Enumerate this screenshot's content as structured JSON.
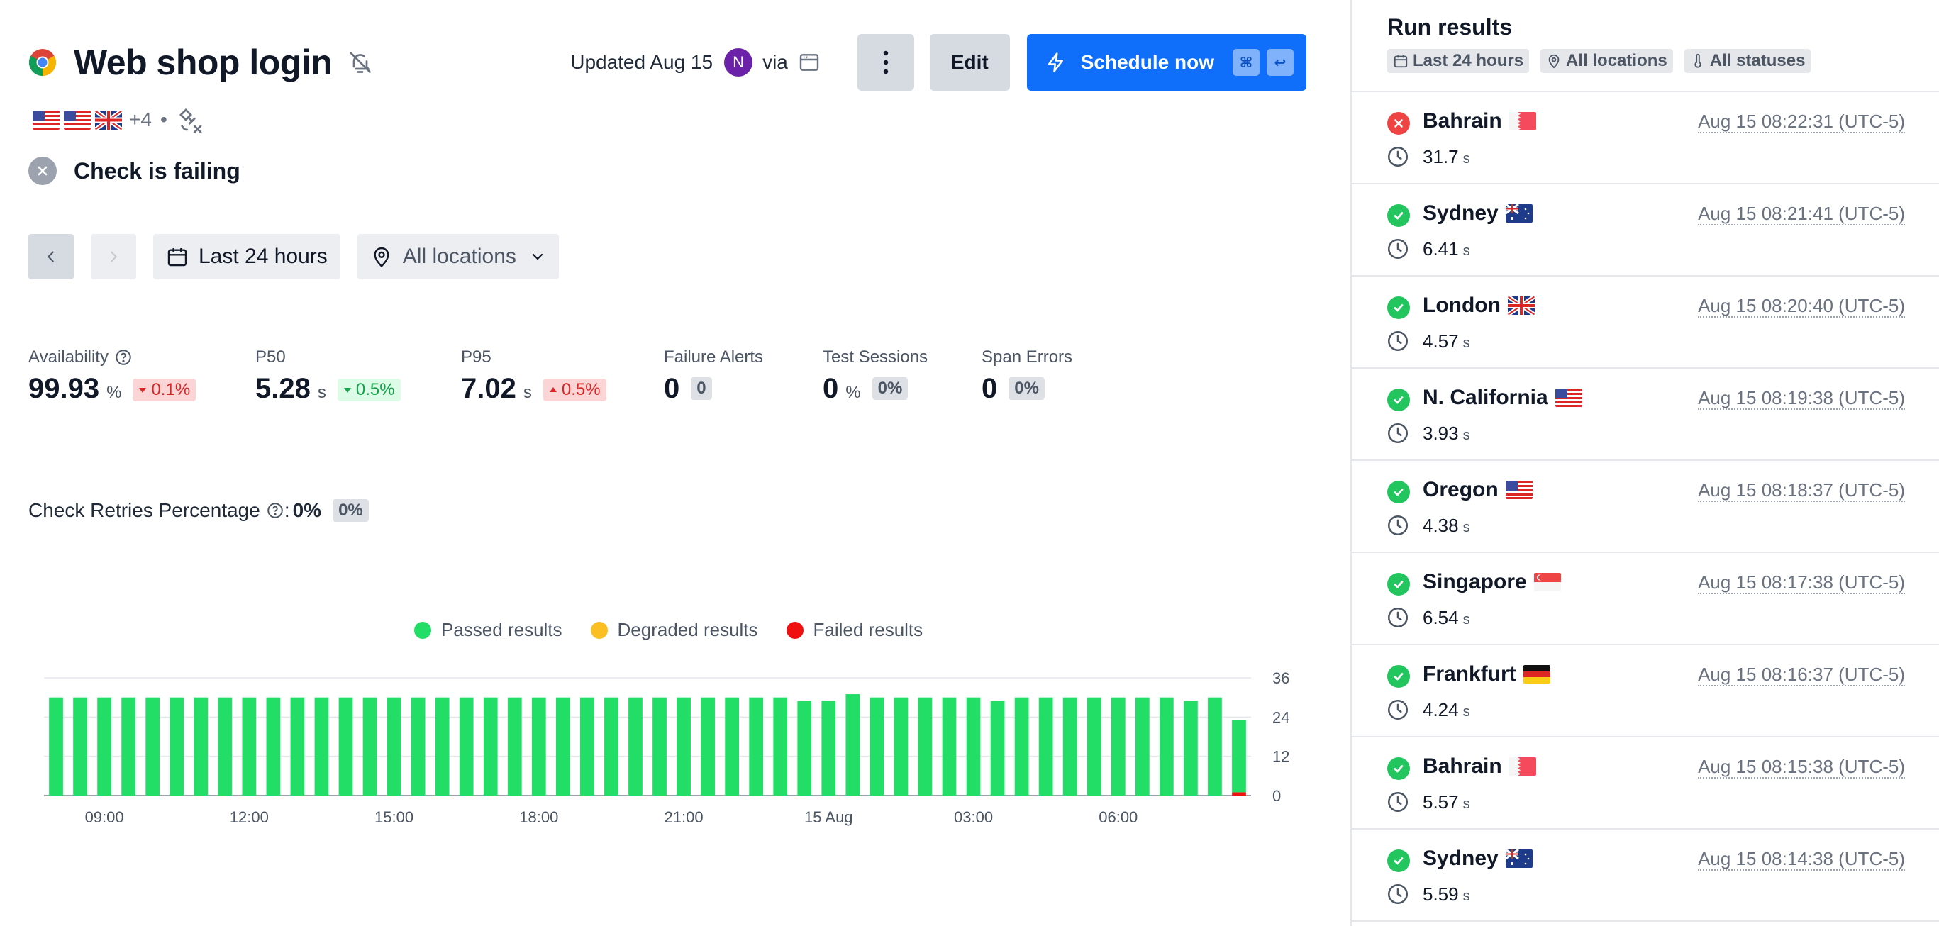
{
  "header": {
    "title": "Web shop login",
    "updated": "Updated Aug 15",
    "avatar_initial": "N",
    "via": "via",
    "edit_label": "Edit",
    "schedule_label": "Schedule now",
    "kbd_cmd": "⌘",
    "kbd_enter": "↩"
  },
  "locations_summary": {
    "more": "+4",
    "separator": "•"
  },
  "status": {
    "text": "Check is failing"
  },
  "filters": {
    "range": "Last 24 hours",
    "location": "All locations"
  },
  "metrics": {
    "availability": {
      "label": "Availability",
      "value": "99.93",
      "unit": "%",
      "delta": "0.1%"
    },
    "p50": {
      "label": "P50",
      "value": "5.28",
      "unit": "s",
      "delta": "0.5%"
    },
    "p95": {
      "label": "P95",
      "value": "7.02",
      "unit": "s",
      "delta": "0.5%"
    },
    "failure_alerts": {
      "label": "Failure Alerts",
      "value": "0",
      "badge": "0"
    },
    "test_sessions": {
      "label": "Test Sessions",
      "value": "0",
      "unit": "%",
      "badge": "0%"
    },
    "span_errors": {
      "label": "Span Errors",
      "value": "0",
      "badge": "0%"
    }
  },
  "retries": {
    "label": "Check Retries Percentage",
    "colon": ":",
    "value": "0%",
    "badge": "0%"
  },
  "colors": {
    "passed": "#22dd66",
    "degraded": "#fbbf24",
    "failed": "#ef1010",
    "accent": "#0f6ffa"
  },
  "chart_data": {
    "type": "bar",
    "stacked": true,
    "series": [
      {
        "name": "Passed results",
        "values": [
          30,
          30,
          30,
          30,
          30,
          30,
          30,
          30,
          30,
          30,
          30,
          30,
          30,
          30,
          30,
          30,
          30,
          30,
          30,
          30,
          30,
          30,
          30,
          30,
          30,
          30,
          30,
          30,
          30,
          30,
          30,
          29,
          29,
          31,
          30,
          30,
          30,
          30,
          30,
          29,
          30,
          30,
          30,
          30,
          30,
          30,
          30,
          29,
          30,
          22
        ]
      },
      {
        "name": "Degraded results",
        "values": [
          0,
          0,
          0,
          0,
          0,
          0,
          0,
          0,
          0,
          0,
          0,
          0,
          0,
          0,
          0,
          0,
          0,
          0,
          0,
          0,
          0,
          0,
          0,
          0,
          0,
          0,
          0,
          0,
          0,
          0,
          0,
          0,
          0,
          0,
          0,
          0,
          0,
          0,
          0,
          0,
          0,
          0,
          0,
          0,
          0,
          0,
          0,
          0,
          0,
          0
        ]
      },
      {
        "name": "Failed results",
        "values": [
          0,
          0,
          0,
          0,
          0,
          0,
          0,
          0,
          0,
          0,
          0,
          0,
          0,
          0,
          0,
          0,
          0,
          0,
          0,
          0,
          0,
          0,
          0,
          0,
          0,
          0,
          0,
          0,
          0,
          0,
          0,
          0,
          0,
          0,
          0,
          0,
          0,
          0,
          0,
          0,
          0,
          0,
          0,
          0,
          0,
          0,
          0,
          0,
          0,
          1
        ]
      }
    ],
    "x_tick_labels": [
      "09:00",
      "12:00",
      "15:00",
      "18:00",
      "21:00",
      "15 Aug",
      "03:00",
      "06:00"
    ],
    "y_ticks": [
      0,
      12,
      24,
      36
    ],
    "ylim": [
      0,
      36
    ],
    "grid": true,
    "legend_position": "top-center"
  },
  "sidebar": {
    "title": "Run results",
    "filters": [
      "Last 24 hours",
      "All locations",
      "All statuses"
    ],
    "runs": [
      {
        "location": "Bahrain",
        "flag": "bh",
        "status": "fail",
        "duration": "31.7",
        "unit": "s",
        "time": "Aug 15 08:22:31 (UTC-5)"
      },
      {
        "location": "Sydney",
        "flag": "au",
        "status": "ok",
        "duration": "6.41",
        "unit": "s",
        "time": "Aug 15 08:21:41 (UTC-5)"
      },
      {
        "location": "London",
        "flag": "gb",
        "status": "ok",
        "duration": "4.57",
        "unit": "s",
        "time": "Aug 15 08:20:40 (UTC-5)"
      },
      {
        "location": "N. California",
        "flag": "us",
        "status": "ok",
        "duration": "3.93",
        "unit": "s",
        "time": "Aug 15 08:19:38 (UTC-5)"
      },
      {
        "location": "Oregon",
        "flag": "us",
        "status": "ok",
        "duration": "4.38",
        "unit": "s",
        "time": "Aug 15 08:18:37 (UTC-5)"
      },
      {
        "location": "Singapore",
        "flag": "sg",
        "status": "ok",
        "duration": "6.54",
        "unit": "s",
        "time": "Aug 15 08:17:38 (UTC-5)"
      },
      {
        "location": "Frankfurt",
        "flag": "de",
        "status": "ok",
        "duration": "4.24",
        "unit": "s",
        "time": "Aug 15 08:16:37 (UTC-5)"
      },
      {
        "location": "Bahrain",
        "flag": "bh",
        "status": "ok",
        "duration": "5.57",
        "unit": "s",
        "time": "Aug 15 08:15:38 (UTC-5)"
      },
      {
        "location": "Sydney",
        "flag": "au",
        "status": "ok",
        "duration": "5.59",
        "unit": "s",
        "time": "Aug 15 08:14:38 (UTC-5)"
      }
    ]
  }
}
